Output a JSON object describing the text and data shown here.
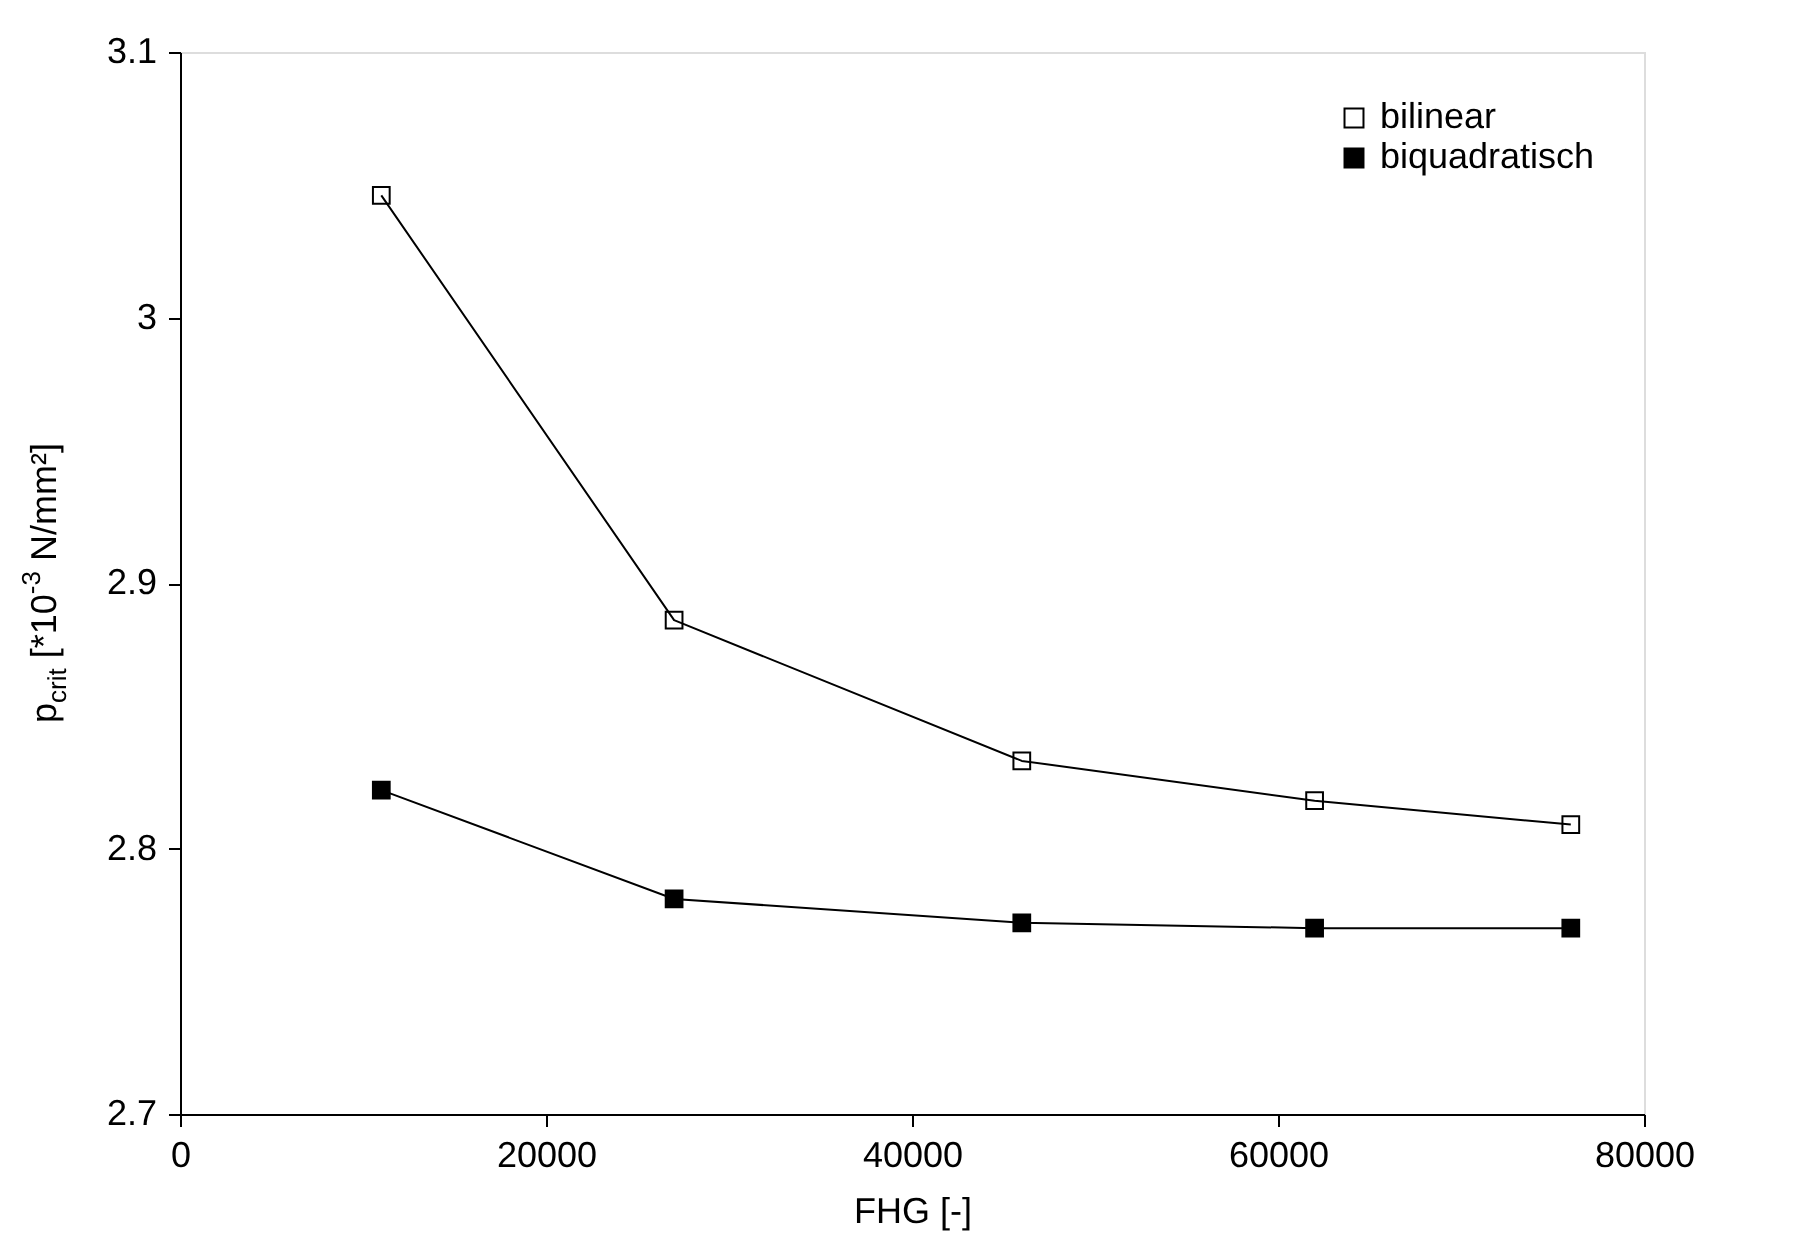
{
  "chart_data": {
    "type": "line",
    "xlabel": "FHG [-]",
    "ylabel": "p$_{crit}$ [*10$^{-3}$ N/mm²]",
    "x": [
      11000,
      27000,
      46000,
      62000,
      76000
    ],
    "series": [
      {
        "name": "bilinear",
        "color": "#000000",
        "marker": "square_open",
        "values": [
          3.046,
          2.886,
          2.833,
          2.818,
          2.809
        ]
      },
      {
        "name": "biquadratisch",
        "color": "#000000",
        "marker": "square",
        "values": [
          2.822,
          2.781,
          2.772,
          2.77,
          2.77
        ]
      }
    ],
    "xlim": [
      0,
      80000
    ],
    "xticks": [
      0,
      20000,
      40000,
      60000,
      80000
    ],
    "ylim": [
      2.7,
      3.1
    ],
    "yticks": [
      2.7,
      2.8,
      2.9,
      3,
      3.1
    ],
    "grid": false,
    "legend": "top right",
    "line_style": "solid"
  }
}
